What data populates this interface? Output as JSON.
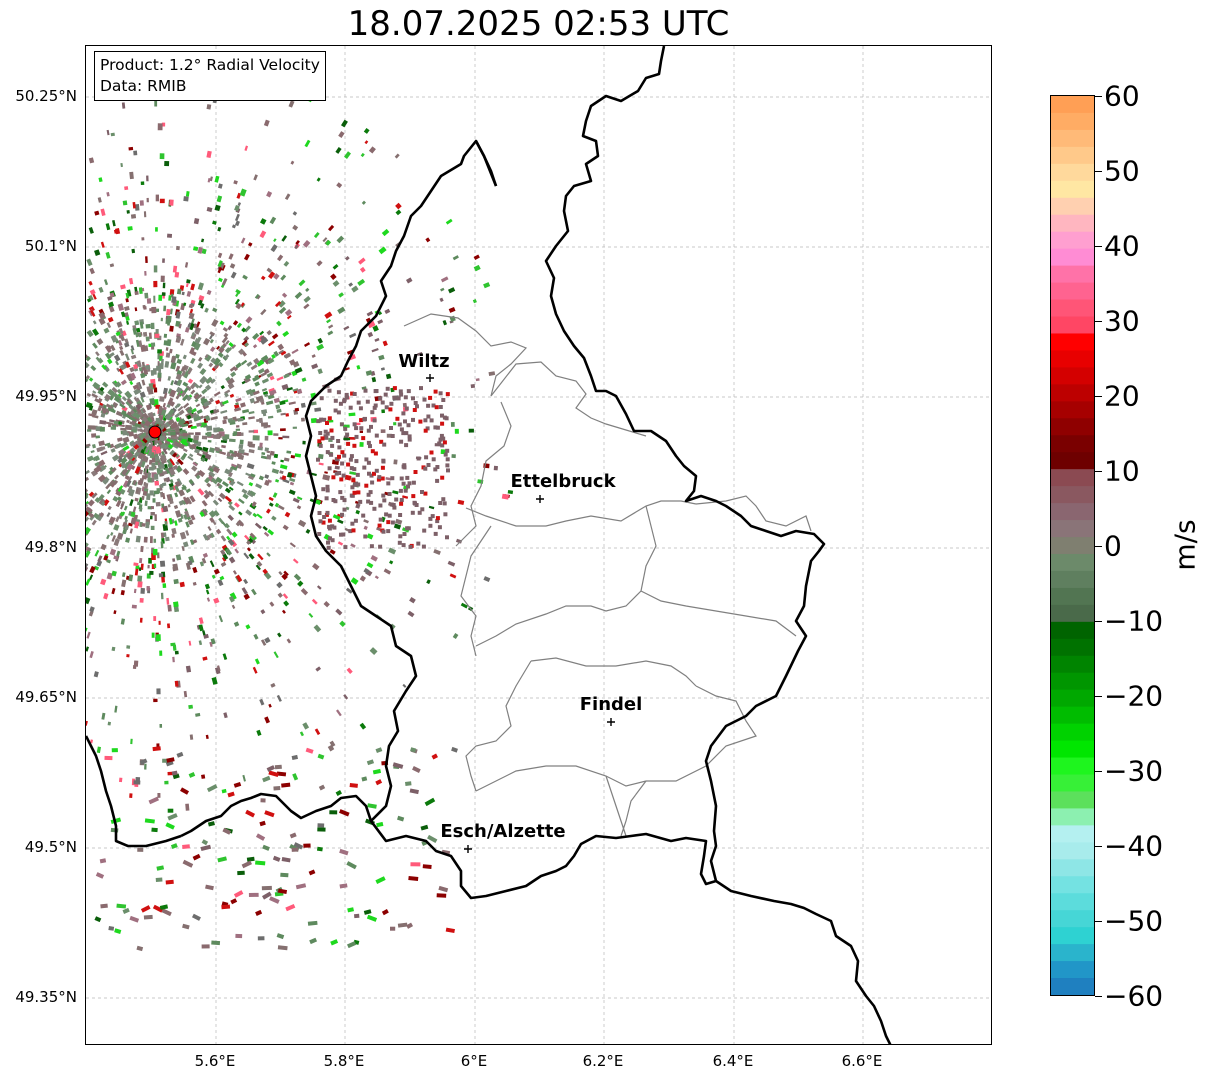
{
  "title": "18.07.2025 02:53 UTC",
  "info": {
    "product": "Product: 1.2° Radial Velocity",
    "source": "Data: RMIB"
  },
  "lat_labels": [
    "50.25°N",
    "50.1°N",
    "49.95°N",
    "49.8°N",
    "49.65°N",
    "49.5°N",
    "49.35°N"
  ],
  "lon_labels": [
    "5.6°E",
    "5.8°E",
    "6°E",
    "6.2°E",
    "6.4°E",
    "6.6°E"
  ],
  "cities": [
    {
      "name": "Wiltz"
    },
    {
      "name": "Ettelbruck"
    },
    {
      "name": "Findel"
    },
    {
      "name": "Esch/Alzette"
    }
  ],
  "colorbar": {
    "unit": "m/s",
    "ticks": [
      "60",
      "50",
      "40",
      "30",
      "20",
      "10",
      "0",
      "−10",
      "−20",
      "−30",
      "−40",
      "−50",
      "−60"
    ],
    "range": [
      -60,
      60
    ]
  },
  "colors": {
    "border": "#000000",
    "canton_lines": "#808080",
    "radar_site": "#ff0000",
    "grid": "#b0b0b0"
  }
}
